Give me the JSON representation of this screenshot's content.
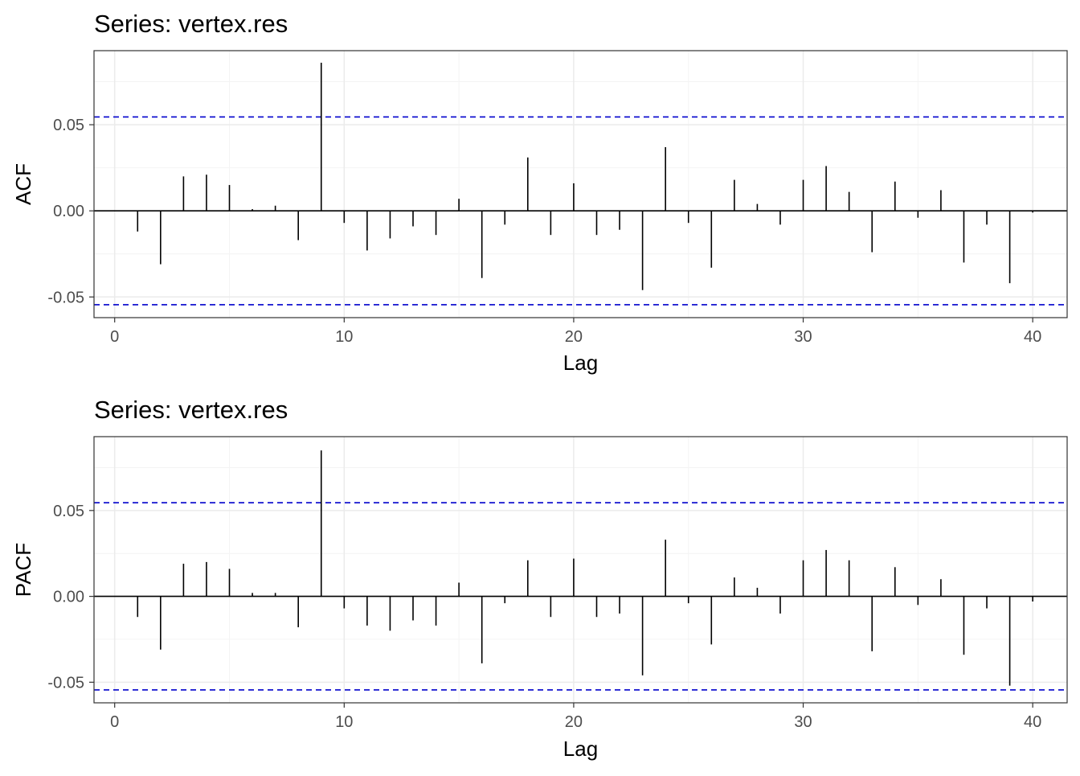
{
  "colors": {
    "background": "#ffffff",
    "panel_border": "#333333",
    "grid_major": "#ebebeb",
    "grid_minor": "#f4f4f4",
    "bars": "#000000",
    "confidence_band": "#0000cc",
    "tick_label": "#4d4d4d"
  },
  "chart_data": [
    {
      "type": "bar",
      "title": "Series: vertex.res",
      "xlabel": "Lag",
      "ylabel": "ACF",
      "x_ticks": [
        "0",
        "10",
        "20",
        "30",
        "40"
      ],
      "y_ticks": [
        "-0.05",
        "0.00",
        "0.05"
      ],
      "xlim": [
        -0.9,
        41.5
      ],
      "ylim": [
        -0.062,
        0.093
      ],
      "grid": true,
      "confidence_bound": 0.0545,
      "x": [
        1,
        2,
        3,
        4,
        5,
        6,
        7,
        8,
        9,
        10,
        11,
        12,
        13,
        14,
        15,
        16,
        17,
        18,
        19,
        20,
        21,
        22,
        23,
        24,
        25,
        26,
        27,
        28,
        29,
        30,
        31,
        32,
        33,
        34,
        35,
        36,
        37,
        38,
        39,
        40
      ],
      "values": [
        -0.012,
        -0.031,
        0.02,
        0.021,
        0.015,
        0.001,
        0.003,
        -0.017,
        0.086,
        -0.007,
        -0.023,
        -0.016,
        -0.009,
        -0.014,
        0.007,
        -0.039,
        -0.008,
        0.031,
        -0.014,
        0.016,
        -0.014,
        -0.011,
        -0.046,
        0.037,
        -0.007,
        -0.033,
        0.018,
        0.004,
        -0.008,
        0.018,
        0.026,
        0.011,
        -0.024,
        0.017,
        -0.004,
        0.012,
        -0.03,
        -0.008,
        -0.042,
        -0.001
      ]
    },
    {
      "type": "bar",
      "title": "Series: vertex.res",
      "xlabel": "Lag",
      "ylabel": "PACF",
      "x_ticks": [
        "0",
        "10",
        "20",
        "30",
        "40"
      ],
      "y_ticks": [
        "-0.05",
        "0.00",
        "0.05"
      ],
      "xlim": [
        -0.9,
        41.5
      ],
      "ylim": [
        -0.062,
        0.093
      ],
      "grid": true,
      "confidence_bound": 0.0545,
      "x": [
        1,
        2,
        3,
        4,
        5,
        6,
        7,
        8,
        9,
        10,
        11,
        12,
        13,
        14,
        15,
        16,
        17,
        18,
        19,
        20,
        21,
        22,
        23,
        24,
        25,
        26,
        27,
        28,
        29,
        30,
        31,
        32,
        33,
        34,
        35,
        36,
        37,
        38,
        39,
        40
      ],
      "values": [
        -0.012,
        -0.031,
        0.019,
        0.02,
        0.016,
        0.002,
        0.002,
        -0.018,
        0.085,
        -0.007,
        -0.017,
        -0.02,
        -0.014,
        -0.017,
        0.008,
        -0.039,
        -0.004,
        0.021,
        -0.012,
        0.022,
        -0.012,
        -0.01,
        -0.046,
        0.033,
        -0.004,
        -0.028,
        0.011,
        0.005,
        -0.01,
        0.021,
        0.027,
        0.021,
        -0.032,
        0.017,
        -0.005,
        0.01,
        -0.034,
        -0.007,
        -0.052,
        -0.003
      ]
    }
  ]
}
